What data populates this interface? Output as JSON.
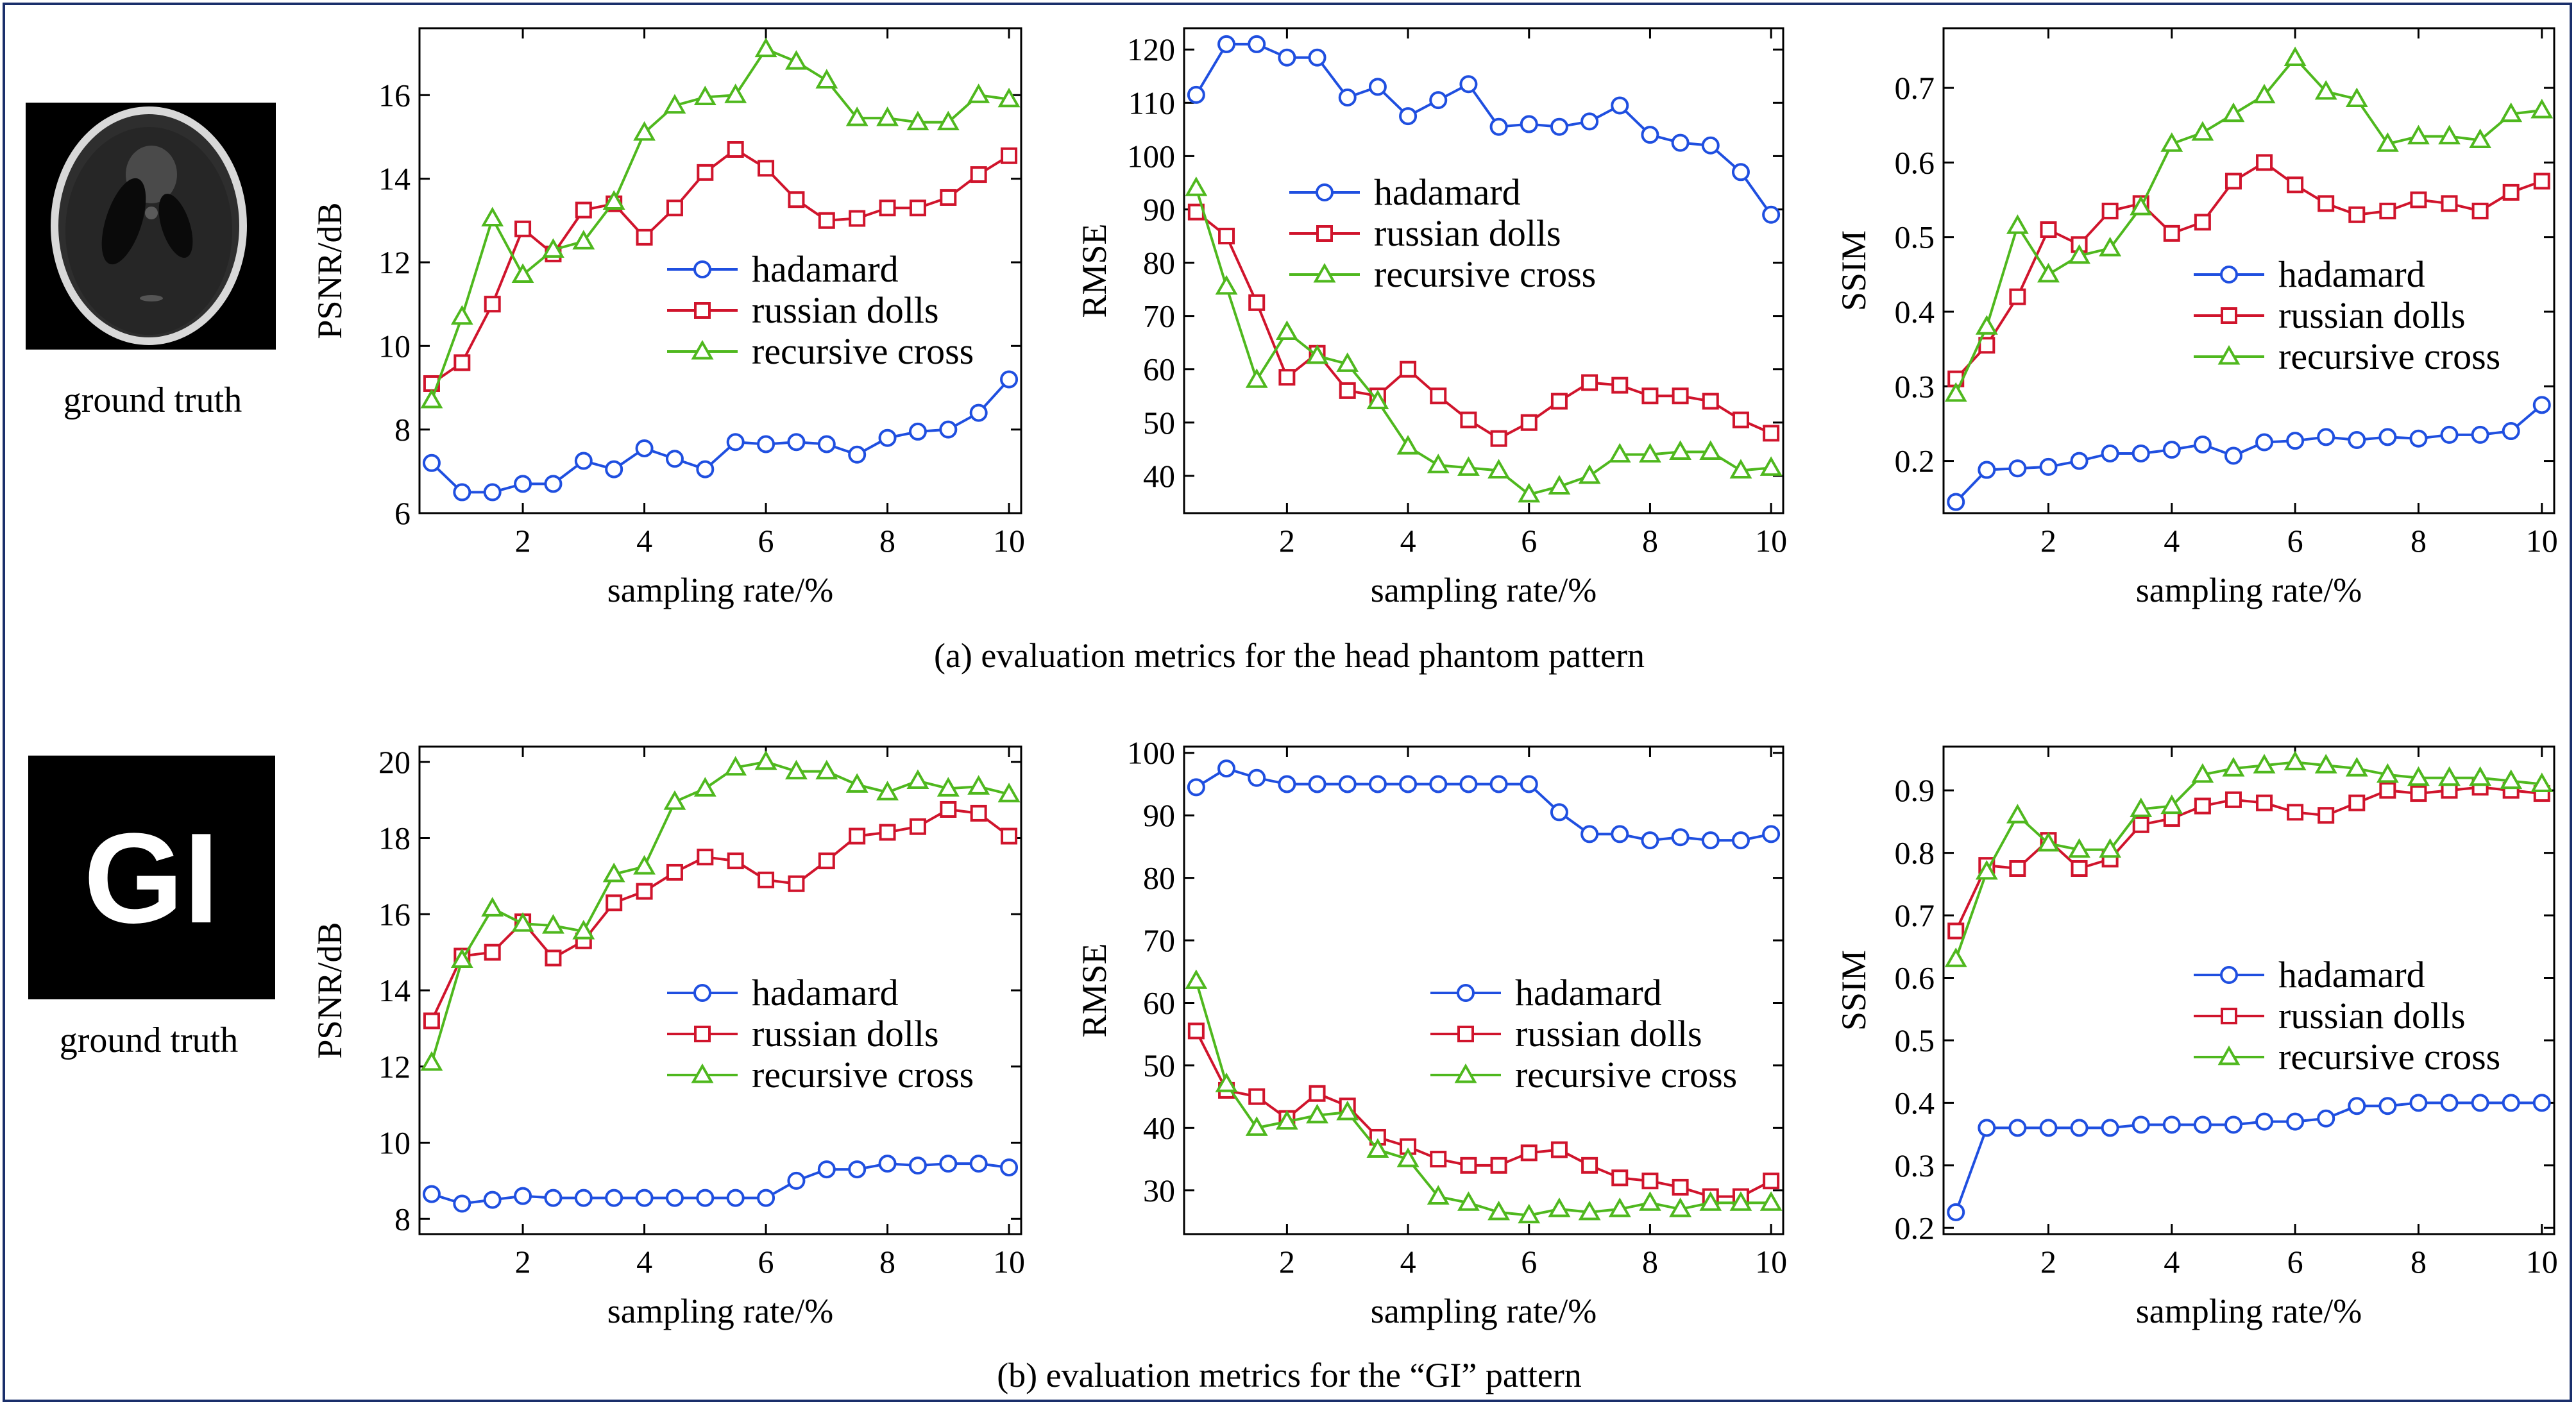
{
  "figure": {
    "captions": [
      "(a) evaluation metrics for the head phantom pattern",
      "(b) evaluation metrics for the “GI” pattern"
    ],
    "ground_truth_label": "ground truth",
    "gi_image_text": "GI",
    "colors": {
      "hadamard": "#1f4fe0",
      "russian_dolls": "#d0142c",
      "recursive_cross": "#4fb81e",
      "frame": "#1a2f6b"
    }
  },
  "chart_data": [
    {
      "id": "a-psnr",
      "type": "line",
      "xlabel": "sampling rate/%",
      "ylabel": "PSNR/dB",
      "xlim": [
        0.3,
        10.2
      ],
      "ylim": [
        6,
        17.6
      ],
      "xticks": [
        2,
        4,
        6,
        8,
        10
      ],
      "yticks": [
        6,
        8,
        10,
        12,
        14,
        16
      ],
      "legend_position": "center-right",
      "x": [
        0.5,
        1,
        1.5,
        2,
        2.5,
        3,
        3.5,
        4,
        4.5,
        5,
        5.5,
        6,
        6.5,
        7,
        7.5,
        8,
        8.5,
        9,
        9.5,
        10
      ],
      "series": [
        {
          "name": "hadamard",
          "marker": "circle",
          "values": [
            7.2,
            6.5,
            6.5,
            6.7,
            6.7,
            7.25,
            7.05,
            7.55,
            7.3,
            7.05,
            7.7,
            7.65,
            7.7,
            7.65,
            7.4,
            7.8,
            7.95,
            8.0,
            8.4,
            9.2
          ]
        },
        {
          "name": "russian dolls",
          "marker": "square",
          "values": [
            9.1,
            9.6,
            11.0,
            12.8,
            12.2,
            13.25,
            13.4,
            12.6,
            13.3,
            14.15,
            14.7,
            14.25,
            13.5,
            13.0,
            13.05,
            13.3,
            13.3,
            13.55,
            14.1,
            14.55
          ]
        },
        {
          "name": "recursive cross",
          "marker": "triangle",
          "values": [
            8.7,
            10.7,
            13.05,
            11.7,
            12.3,
            12.5,
            13.45,
            15.1,
            15.75,
            15.95,
            16.0,
            17.1,
            16.8,
            16.35,
            15.45,
            15.45,
            15.35,
            15.35,
            16.0,
            15.9
          ]
        }
      ]
    },
    {
      "id": "a-rmse",
      "type": "line",
      "xlabel": "sampling rate/%",
      "ylabel": "RMSE",
      "xlim": [
        0.3,
        10.2
      ],
      "ylim": [
        33,
        124
      ],
      "xticks": [
        2,
        4,
        6,
        8,
        10
      ],
      "yticks": [
        40,
        50,
        60,
        70,
        80,
        90,
        100,
        110,
        120
      ],
      "legend_position": "upper-right",
      "x": [
        0.5,
        1,
        1.5,
        2,
        2.5,
        3,
        3.5,
        4,
        4.5,
        5,
        5.5,
        6,
        6.5,
        7,
        7.5,
        8,
        8.5,
        9,
        9.5,
        10
      ],
      "series": [
        {
          "name": "hadamard",
          "marker": "circle",
          "values": [
            111.5,
            121,
            121,
            118.5,
            118.5,
            111,
            113,
            107.5,
            110.5,
            113.5,
            105.5,
            106,
            105.5,
            106.5,
            109.5,
            104,
            102.5,
            102,
            97,
            89
          ]
        },
        {
          "name": "russian dolls",
          "marker": "square",
          "values": [
            89.5,
            85,
            72.5,
            58.5,
            63,
            56,
            55,
            60,
            55,
            50.5,
            47,
            50,
            54,
            57.5,
            57,
            55,
            55,
            54,
            50.5,
            48
          ]
        },
        {
          "name": "recursive cross",
          "marker": "triangle",
          "values": [
            94,
            75.5,
            58,
            67,
            62.5,
            61,
            54,
            45.5,
            42,
            41.5,
            41,
            36.5,
            38,
            40,
            44,
            44,
            44.5,
            44.5,
            41,
            41.5
          ]
        }
      ]
    },
    {
      "id": "a-ssim",
      "type": "line",
      "xlabel": "sampling rate/%",
      "ylabel": "SSIM",
      "xlim": [
        0.3,
        10.2
      ],
      "ylim": [
        0.13,
        0.78
      ],
      "xticks": [
        2,
        4,
        6,
        8,
        10
      ],
      "yticks": [
        0.2,
        0.3,
        0.4,
        0.5,
        0.6,
        0.7
      ],
      "legend_position": "center-right",
      "x": [
        0.5,
        1,
        1.5,
        2,
        2.5,
        3,
        3.5,
        4,
        4.5,
        5,
        5.5,
        6,
        6.5,
        7,
        7.5,
        8,
        8.5,
        9,
        9.5,
        10
      ],
      "series": [
        {
          "name": "hadamard",
          "marker": "circle",
          "values": [
            0.145,
            0.188,
            0.19,
            0.192,
            0.2,
            0.21,
            0.21,
            0.215,
            0.222,
            0.207,
            0.225,
            0.227,
            0.232,
            0.228,
            0.232,
            0.23,
            0.235,
            0.235,
            0.24,
            0.275
          ]
        },
        {
          "name": "russian dolls",
          "marker": "square",
          "values": [
            0.31,
            0.355,
            0.42,
            0.51,
            0.49,
            0.535,
            0.545,
            0.505,
            0.52,
            0.575,
            0.6,
            0.57,
            0.545,
            0.53,
            0.535,
            0.55,
            0.545,
            0.535,
            0.56,
            0.575
          ]
        },
        {
          "name": "recursive cross",
          "marker": "triangle",
          "values": [
            0.29,
            0.38,
            0.515,
            0.45,
            0.475,
            0.485,
            0.54,
            0.625,
            0.64,
            0.665,
            0.69,
            0.74,
            0.695,
            0.685,
            0.625,
            0.635,
            0.635,
            0.63,
            0.665,
            0.67
          ]
        }
      ]
    },
    {
      "id": "b-psnr",
      "type": "line",
      "xlabel": "sampling rate/%",
      "ylabel": "PSNR/dB",
      "xlim": [
        0.3,
        10.2
      ],
      "ylim": [
        7.6,
        20.4
      ],
      "xticks": [
        2,
        4,
        6,
        8,
        10
      ],
      "yticks": [
        8,
        10,
        12,
        14,
        16,
        18,
        20
      ],
      "legend_position": "center-right",
      "x": [
        0.5,
        1,
        1.5,
        2,
        2.5,
        3,
        3.5,
        4,
        4.5,
        5,
        5.5,
        6,
        6.5,
        7,
        7.5,
        8,
        8.5,
        9,
        9.5,
        10
      ],
      "series": [
        {
          "name": "hadamard",
          "marker": "circle",
          "values": [
            8.65,
            8.4,
            8.5,
            8.6,
            8.55,
            8.55,
            8.55,
            8.55,
            8.55,
            8.55,
            8.55,
            8.55,
            9.0,
            9.3,
            9.3,
            9.45,
            9.4,
            9.45,
            9.45,
            9.35
          ]
        },
        {
          "name": "russian dolls",
          "marker": "square",
          "values": [
            13.2,
            14.9,
            15.0,
            15.8,
            14.85,
            15.3,
            16.3,
            16.6,
            17.1,
            17.5,
            17.4,
            16.9,
            16.8,
            17.4,
            18.05,
            18.15,
            18.3,
            18.75,
            18.65,
            18.05
          ]
        },
        {
          "name": "recursive cross",
          "marker": "triangle",
          "values": [
            12.1,
            14.8,
            16.15,
            15.75,
            15.7,
            15.55,
            17.05,
            17.25,
            18.95,
            19.3,
            19.85,
            20.0,
            19.75,
            19.75,
            19.4,
            19.2,
            19.5,
            19.3,
            19.35,
            19.15
          ]
        }
      ]
    },
    {
      "id": "b-rmse",
      "type": "line",
      "xlabel": "sampling rate/%",
      "ylabel": "RMSE",
      "xlim": [
        0.3,
        10.2
      ],
      "ylim": [
        23,
        101
      ],
      "xticks": [
        2,
        4,
        6,
        8,
        10
      ],
      "yticks": [
        30,
        40,
        50,
        60,
        70,
        80,
        90,
        100
      ],
      "legend_position": "center-right",
      "x": [
        0.5,
        1,
        1.5,
        2,
        2.5,
        3,
        3.5,
        4,
        4.5,
        5,
        5.5,
        6,
        6.5,
        7,
        7.5,
        8,
        8.5,
        9,
        9.5,
        10
      ],
      "series": [
        {
          "name": "hadamard",
          "marker": "circle",
          "values": [
            94.5,
            97.5,
            96,
            95,
            95,
            95,
            95,
            95,
            95,
            95,
            95,
            95,
            90.5,
            87,
            87,
            86,
            86.5,
            86,
            86,
            87
          ]
        },
        {
          "name": "russian dolls",
          "marker": "square",
          "values": [
            55.5,
            46,
            45,
            41.5,
            45.5,
            43.5,
            38.5,
            37,
            35,
            34,
            34,
            36,
            36.5,
            34,
            32,
            31.5,
            30.5,
            29,
            29,
            31.5
          ]
        },
        {
          "name": "recursive cross",
          "marker": "triangle",
          "values": [
            63.5,
            47,
            40,
            41,
            42,
            42.5,
            36.5,
            35,
            29,
            28,
            26.5,
            26,
            27,
            26.5,
            27,
            28,
            27,
            28,
            28,
            28
          ]
        }
      ]
    },
    {
      "id": "b-ssim",
      "type": "line",
      "xlabel": "sampling rate/%",
      "ylabel": "SSIM",
      "xlim": [
        0.3,
        10.2
      ],
      "ylim": [
        0.19,
        0.97
      ],
      "xticks": [
        2,
        4,
        6,
        8,
        10
      ],
      "yticks": [
        0.2,
        0.3,
        0.4,
        0.5,
        0.6,
        0.7,
        0.8,
        0.9
      ],
      "legend_position": "center-right",
      "x": [
        0.5,
        1,
        1.5,
        2,
        2.5,
        3,
        3.5,
        4,
        4.5,
        5,
        5.5,
        6,
        6.5,
        7,
        7.5,
        8,
        8.5,
        9,
        9.5,
        10
      ],
      "series": [
        {
          "name": "hadamard",
          "marker": "circle",
          "values": [
            0.225,
            0.36,
            0.36,
            0.36,
            0.36,
            0.36,
            0.365,
            0.365,
            0.365,
            0.365,
            0.37,
            0.37,
            0.375,
            0.395,
            0.395,
            0.4,
            0.4,
            0.4,
            0.4,
            0.4
          ]
        },
        {
          "name": "russian dolls",
          "marker": "square",
          "values": [
            0.675,
            0.78,
            0.775,
            0.82,
            0.775,
            0.79,
            0.845,
            0.855,
            0.875,
            0.885,
            0.88,
            0.865,
            0.86,
            0.88,
            0.9,
            0.895,
            0.9,
            0.905,
            0.9,
            0.895
          ]
        },
        {
          "name": "recursive cross",
          "marker": "triangle",
          "values": [
            0.63,
            0.77,
            0.86,
            0.815,
            0.805,
            0.805,
            0.87,
            0.875,
            0.925,
            0.935,
            0.94,
            0.945,
            0.94,
            0.935,
            0.925,
            0.92,
            0.92,
            0.92,
            0.915,
            0.91
          ]
        }
      ]
    }
  ]
}
